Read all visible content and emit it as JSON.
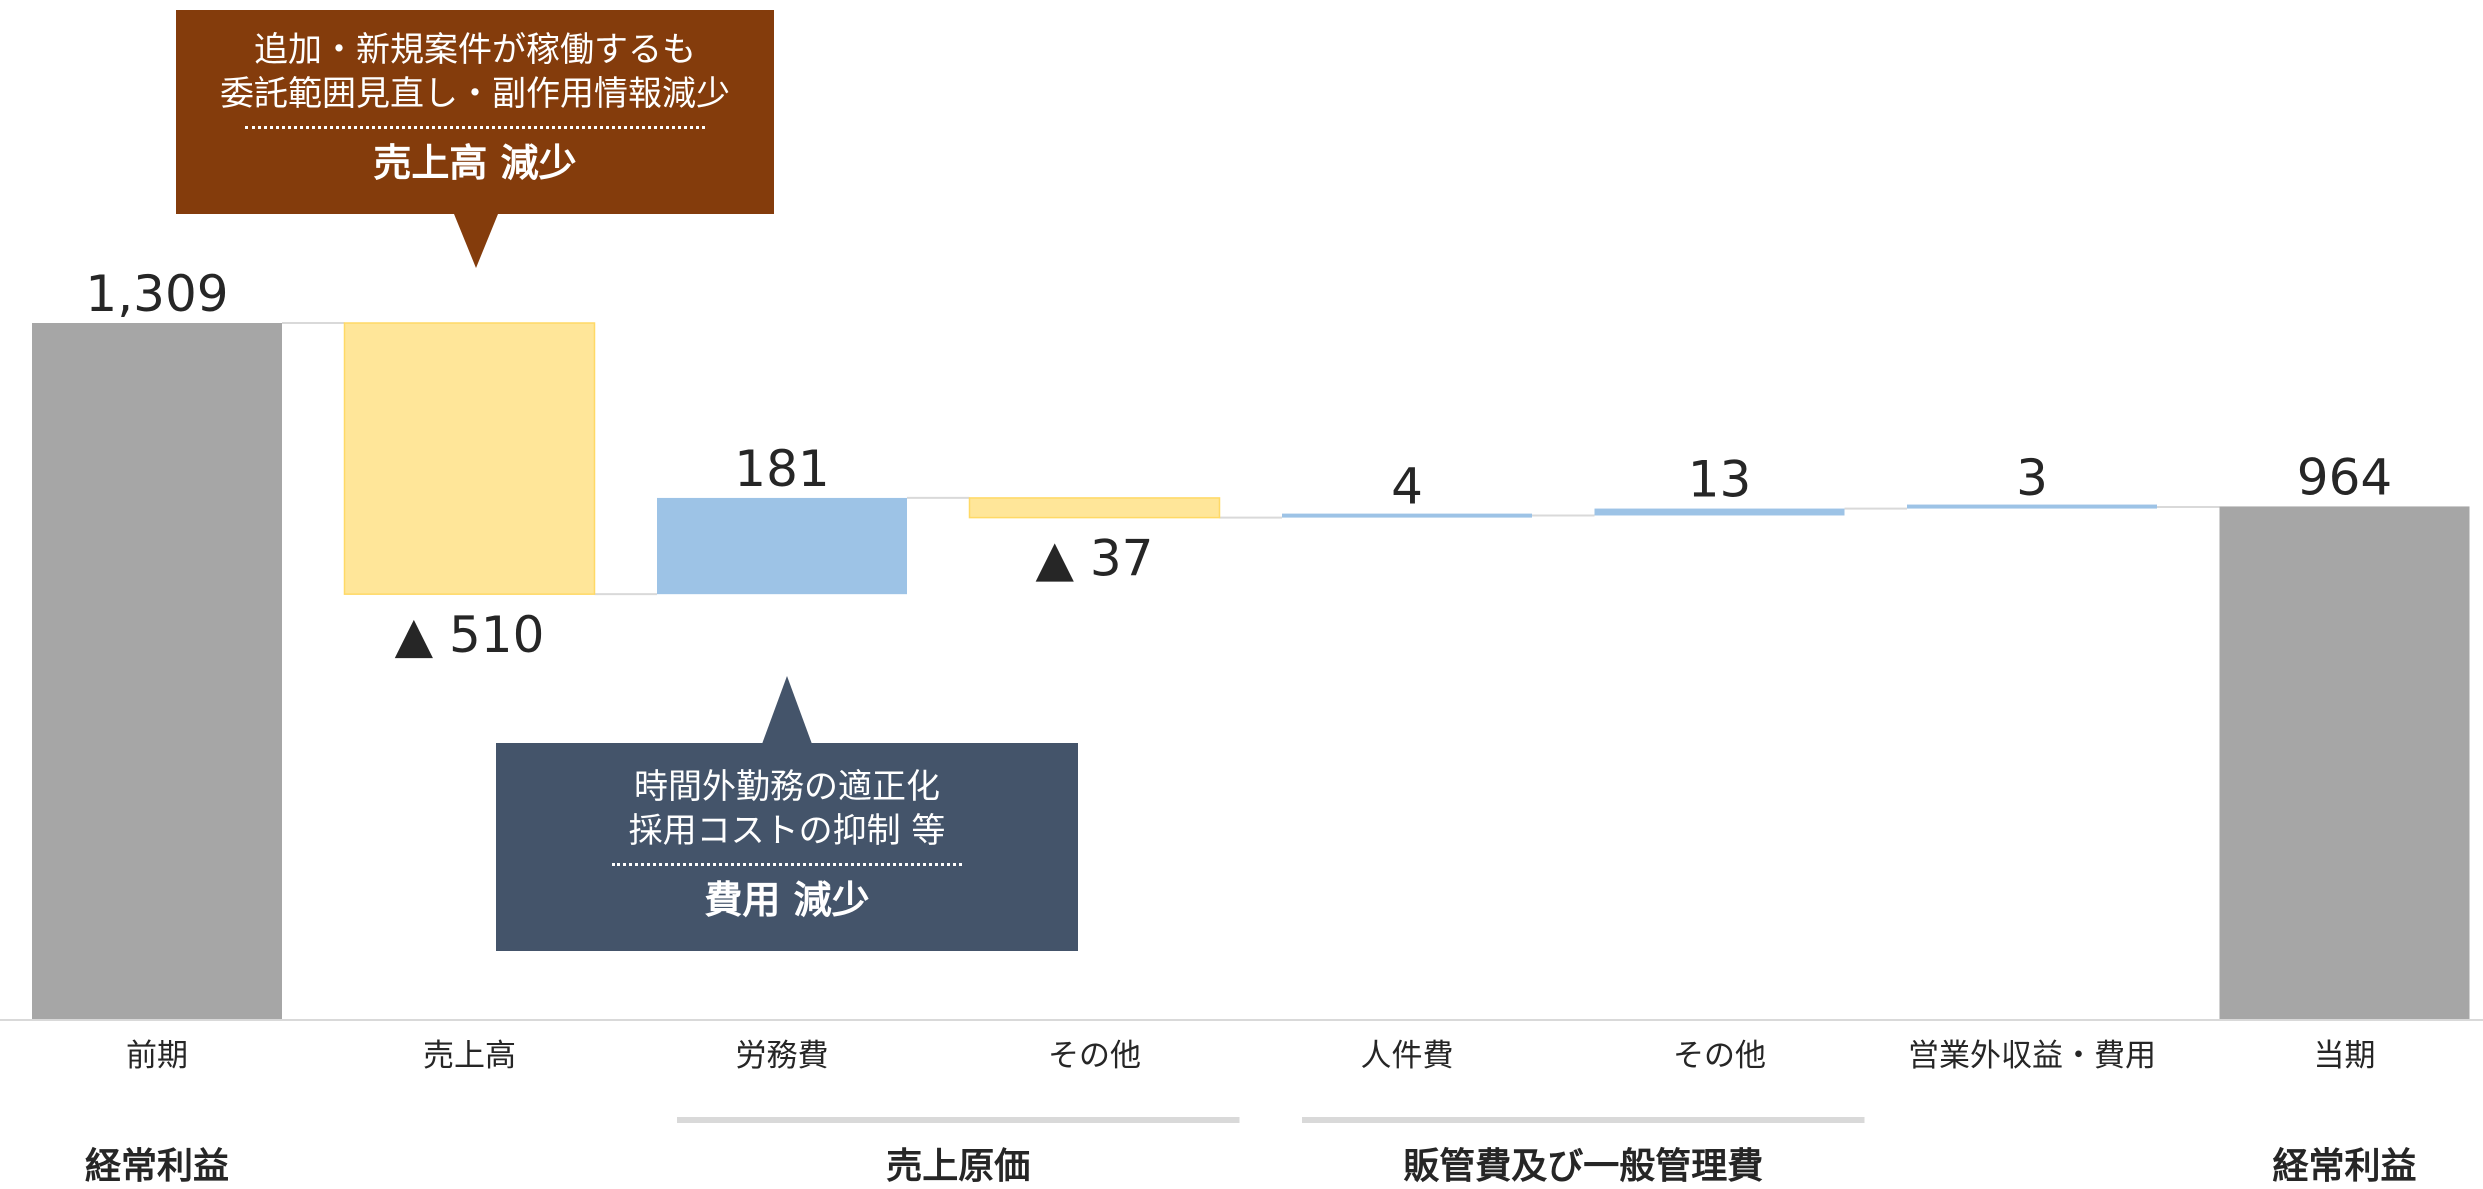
{
  "chart_data": {
    "type": "waterfall",
    "title": "",
    "categories": [
      "前期",
      "売上高",
      "労務費",
      "その他",
      "人件費",
      "その他",
      "営業外収益・費用",
      "当期"
    ],
    "labels": [
      "1,309",
      "▲ 510",
      "181",
      "▲ 37",
      "4",
      "13",
      "3",
      "964"
    ],
    "steps": [
      {
        "kind": "total",
        "value": 1309
      },
      {
        "kind": "decrease",
        "value": 510
      },
      {
        "kind": "increase",
        "value": 181
      },
      {
        "kind": "decrease",
        "value": 37
      },
      {
        "kind": "increase",
        "value": 4
      },
      {
        "kind": "increase",
        "value": 13
      },
      {
        "kind": "increase",
        "value": 3
      },
      {
        "kind": "total",
        "value": 964
      }
    ],
    "ylim": [
      0,
      1309
    ],
    "groups": [
      {
        "label": "経常利益",
        "from": 0,
        "to": 0,
        "underline": false
      },
      {
        "label": "売上原価",
        "from": 2,
        "to": 3,
        "underline": true
      },
      {
        "label": "販管費及び一般管理費",
        "from": 4,
        "to": 5,
        "underline": true
      },
      {
        "label": "経常利益",
        "from": 7,
        "to": 7,
        "underline": false
      }
    ],
    "colors": {
      "total": "#a6a6a6",
      "decrease": "#ffe699",
      "decrease_border": "#ffd966",
      "increase": "#9dc3e6",
      "connector": "#d9d9d9",
      "axis": "#d9d9d9",
      "group_line": "#d9d9d9"
    }
  },
  "callouts": {
    "sales": {
      "line1": "追加・新規案件が稼働するも",
      "line2": "委託範囲見直し・副作用情報減少",
      "headline": "売上高 減少",
      "color": "#843c0c"
    },
    "cost": {
      "line1": "時間外勤務の適正化",
      "line2": "採用コストの抑制 等",
      "headline": "費用 減少",
      "color": "#44546a"
    }
  }
}
